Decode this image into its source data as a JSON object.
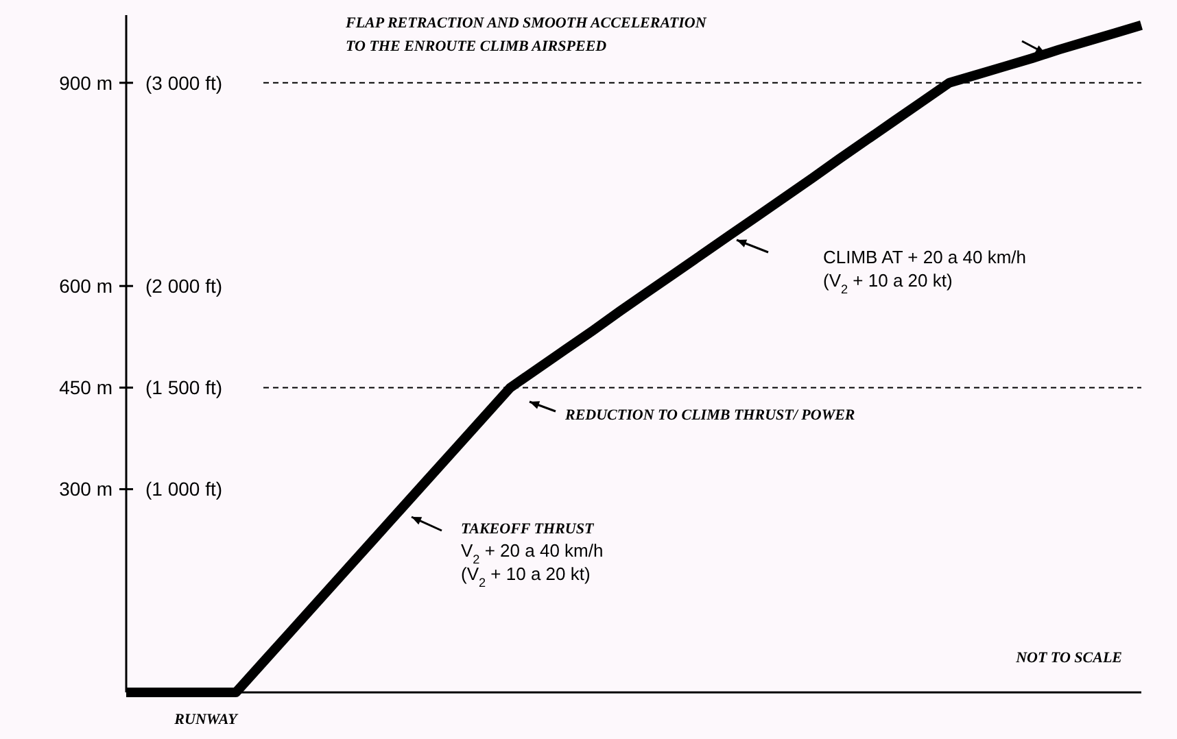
{
  "chart_data": {
    "type": "line",
    "categories": [
      null,
      null,
      null,
      null,
      null,
      null,
      null,
      null,
      null,
      null,
      null,
      null,
      null,
      null,
      null,
      null,
      null,
      null,
      null,
      null,
      null,
      null,
      null,
      null,
      null,
      null,
      null,
      null,
      null,
      null,
      null,
      null,
      null,
      null,
      null,
      null,
      null,
      null
    ],
    "series": [
      {
        "color": "#000000",
        "values": [
          0,
          0,
          0,
          0,
          0,
          45,
          90,
          135,
          180,
          225,
          270,
          315,
          360,
          405,
          450,
          478,
          506,
          534,
          563,
          591,
          619,
          647,
          675,
          703,
          731,
          759,
          788,
          816,
          844,
          872,
          900,
          912,
          924,
          936,
          949,
          961,
          973,
          985
        ]
      }
    ],
    "ylim": [
      0,
      1000
    ],
    "yticks": [
      {
        "value": 300,
        "label": "300 m"
      },
      {
        "value": 450,
        "label": "450 m"
      },
      {
        "value": 600,
        "label": "600 m"
      },
      {
        "value": 900,
        "label": "900 m"
      }
    ],
    "y2lim": [
      0,
      3333
    ],
    "y2ticks": [
      {
        "value": 1000,
        "label": "(1 000 ft)"
      },
      {
        "value": 1500,
        "label": "(1 500 ft)"
      },
      {
        "value": 2000,
        "label": "(2 000 ft)"
      },
      {
        "value": 3000,
        "label": "(3 000 ft)"
      }
    ],
    "tick_labels": "y",
    "ref_lines": [
      {
        "axis": "y",
        "value": 900,
        "line_style": "dashed"
      },
      {
        "axis": "y",
        "value": 450,
        "line_style": "dashed"
      }
    ],
    "annotations": [
      "FLAP RETRACTION AND SMOOTH ACCELERATION\nTO THE ENROUTE CLIMB AIRSPEED",
      "CLIMB AT  + 20 a 40 km/h\n(V$_{2}$ + 10 a 20 kt)",
      "REDUCTION TO CLIMB THRUST/ POWER",
      "TAKEOFF THRUST\nV$_{2}$ + 20 a 40 km/h\n(V$_{2}$ + 10 a 20 kt)",
      "NOT TO SCALE",
      "RUNWAY"
    ],
    "grid": false,
    "line_style": "solid"
  }
}
